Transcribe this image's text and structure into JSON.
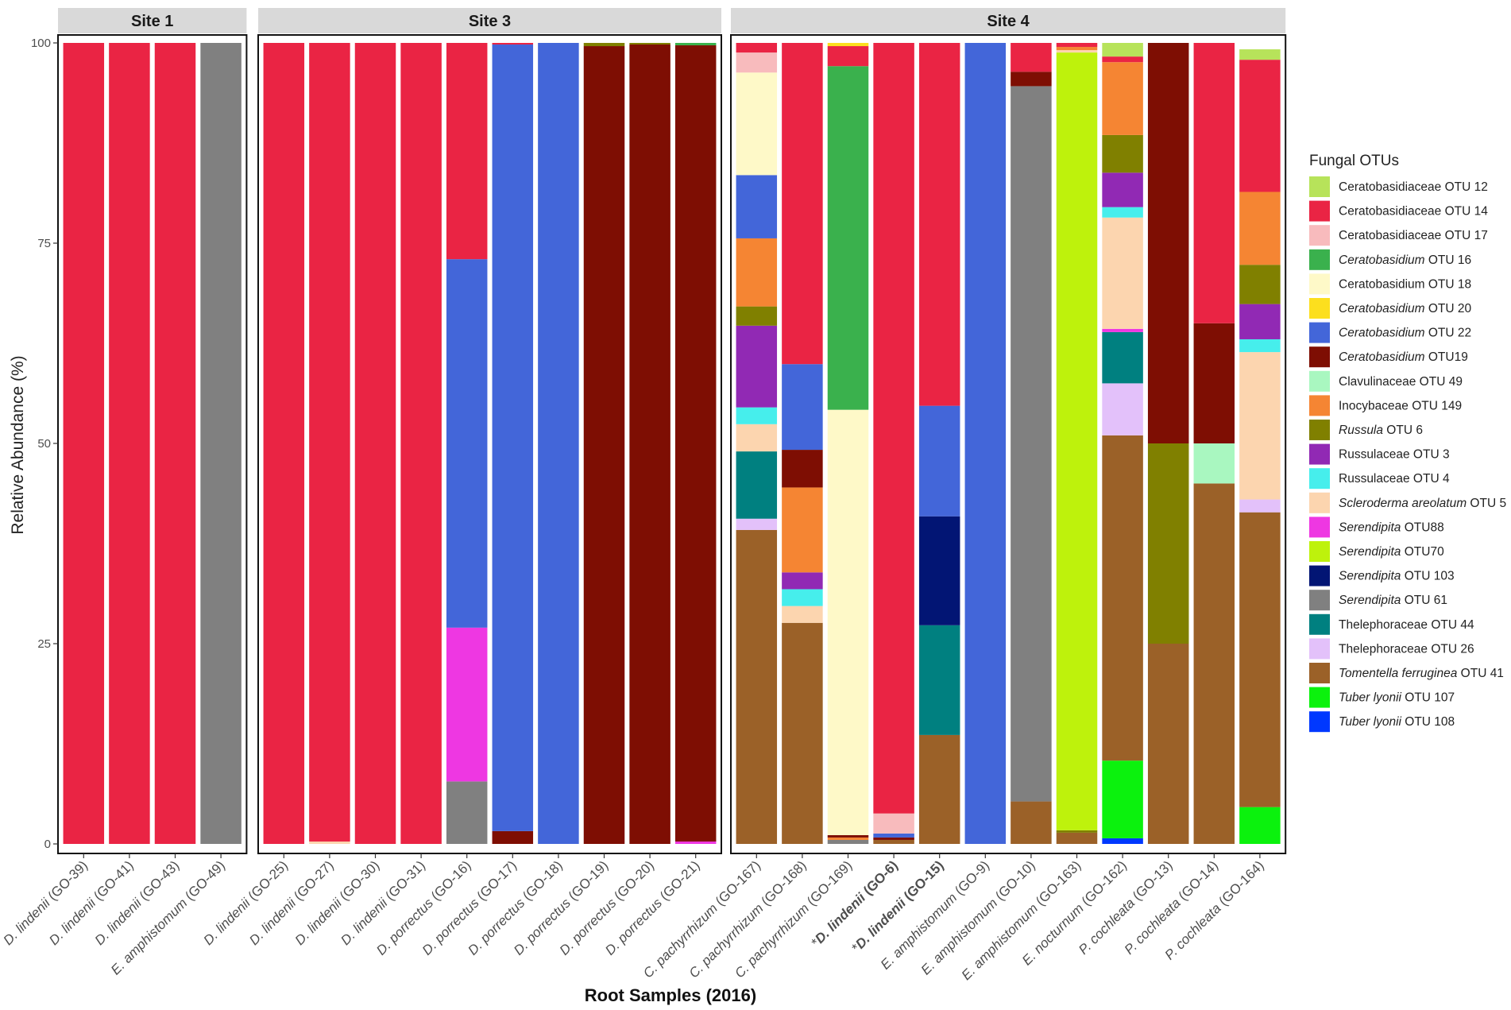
{
  "chart_data": {
    "type": "bar",
    "stacked": true,
    "faceted_by": "site",
    "ylabel": "Relative Abundance (%)",
    "xlabel": "Root Samples (2016)",
    "ylim": [
      0,
      100
    ],
    "yticks": [
      0,
      25,
      50,
      75,
      100
    ],
    "legend_title": "Fungal OTUs",
    "legend_position": "right",
    "otus": [
      {
        "id": "o12",
        "prefix": "Ceratobasidiaceae",
        "italic": false,
        "suffix": " OTU 12",
        "color": "#B7E35A"
      },
      {
        "id": "o14",
        "prefix": "Ceratobasidiaceae",
        "italic": false,
        "suffix": " OTU 14",
        "color": "#EA2444"
      },
      {
        "id": "o17",
        "prefix": "Ceratobasidiaceae",
        "italic": false,
        "suffix": " OTU 17",
        "color": "#F8BBBD"
      },
      {
        "id": "o16",
        "prefix": "Ceratobasidium",
        "italic": true,
        "suffix": " OTU 16",
        "color": "#3AB14D"
      },
      {
        "id": "o18",
        "prefix": "Ceratobasidium",
        "italic": false,
        "suffix": " OTU 18",
        "color": "#FEF9C8"
      },
      {
        "id": "o20",
        "prefix": "Ceratobasidium",
        "italic": true,
        "suffix": " OTU 20",
        "color": "#FCDF1E"
      },
      {
        "id": "o22",
        "prefix": "Ceratobasidium",
        "italic": true,
        "suffix": " OTU 22",
        "color": "#4366D9"
      },
      {
        "id": "o19",
        "prefix": "Ceratobasidium",
        "italic": true,
        "suffix": " OTU19",
        "color": "#7E0E03"
      },
      {
        "id": "o49",
        "prefix": "Clavulinaceae",
        "italic": false,
        "suffix": " OTU 49",
        "color": "#A9F7C0"
      },
      {
        "id": "o149",
        "prefix": "Inocybaceae",
        "italic": false,
        "suffix": " OTU 149",
        "color": "#F58533"
      },
      {
        "id": "o6",
        "prefix": "Russula",
        "italic": true,
        "suffix": " OTU 6",
        "color": "#808000"
      },
      {
        "id": "o3",
        "prefix": "Russulaceae",
        "italic": false,
        "suffix": " OTU 3",
        "color": "#9129B4"
      },
      {
        "id": "o4",
        "prefix": "Russulaceae",
        "italic": false,
        "suffix": " OTU 4",
        "color": "#46EEEC"
      },
      {
        "id": "o5",
        "prefix": "Scleroderma areolatum",
        "italic": true,
        "suffix": " OTU 5",
        "color": "#FCD5AF"
      },
      {
        "id": "o88",
        "prefix": "Serendipita",
        "italic": true,
        "suffix": " OTU88",
        "color": "#EE37E2"
      },
      {
        "id": "o70",
        "prefix": "Serendipita",
        "italic": true,
        "suffix": " OTU70",
        "color": "#BEF20C"
      },
      {
        "id": "o103",
        "prefix": "Serendipita",
        "italic": true,
        "suffix": " OTU 103",
        "color": "#021574"
      },
      {
        "id": "o61",
        "prefix": "Serendipita",
        "italic": true,
        "suffix": " OTU 61",
        "color": "#808080"
      },
      {
        "id": "o44",
        "prefix": "Thelephoraceae",
        "italic": false,
        "suffix": " OTU 44",
        "color": "#008080"
      },
      {
        "id": "o26",
        "prefix": "Thelephoraceae",
        "italic": false,
        "suffix": " OTU 26",
        "color": "#E3C1FA"
      },
      {
        "id": "o41",
        "prefix": "Tomentella ferruginea",
        "italic": true,
        "suffix": " OTU 41",
        "color": "#9B6128"
      },
      {
        "id": "o107",
        "prefix": "Tuber lyonii",
        "italic": true,
        "suffix": " OTU 107",
        "color": "#0BF20D"
      },
      {
        "id": "o108",
        "prefix": "Tuber lyonii",
        "italic": true,
        "suffix": " OTU 108",
        "color": "#0038FF"
      }
    ],
    "facets": [
      {
        "name": "Site 1",
        "samples": [
          {
            "label_species": "D. lindenii",
            "label_code": " (GO-39)",
            "asterisk": false,
            "bold": false,
            "stack": [
              {
                "otu": "o14",
                "value": 100
              }
            ]
          },
          {
            "label_species": "D. lindenii",
            "label_code": " (GO-41)",
            "asterisk": false,
            "bold": false,
            "stack": [
              {
                "otu": "o14",
                "value": 100
              }
            ]
          },
          {
            "label_species": "D. lindenii",
            "label_code": " (GO-43)",
            "asterisk": false,
            "bold": false,
            "stack": [
              {
                "otu": "o14",
                "value": 100
              }
            ]
          },
          {
            "label_species": "E. amphistomum",
            "label_code": " (GO-49)",
            "asterisk": false,
            "bold": false,
            "stack": [
              {
                "otu": "o61",
                "value": 100
              }
            ]
          }
        ]
      },
      {
        "name": "Site 3",
        "samples": [
          {
            "label_species": "D. lindenii",
            "label_code": " (GO-25)",
            "asterisk": false,
            "bold": false,
            "stack": [
              {
                "otu": "o14",
                "value": 100
              }
            ]
          },
          {
            "label_species": "D. lindenii",
            "label_code": " (GO-27)",
            "asterisk": false,
            "bold": false,
            "stack": [
              {
                "otu": "o5",
                "value": 0.3
              },
              {
                "otu": "o14",
                "value": 99.7
              }
            ]
          },
          {
            "label_species": "D. lindenii",
            "label_code": " (GO-30)",
            "asterisk": false,
            "bold": false,
            "stack": [
              {
                "otu": "o14",
                "value": 100
              }
            ]
          },
          {
            "label_species": "D. lindenii",
            "label_code": " (GO-31)",
            "asterisk": false,
            "bold": false,
            "stack": [
              {
                "otu": "o14",
                "value": 100
              }
            ]
          },
          {
            "label_species": "D. porrectus",
            "label_code": " (GO-16)",
            "asterisk": false,
            "bold": false,
            "stack": [
              {
                "otu": "o61",
                "value": 7.8
              },
              {
                "otu": "o88",
                "value": 19.2
              },
              {
                "otu": "o22",
                "value": 46
              },
              {
                "otu": "o14",
                "value": 27
              }
            ]
          },
          {
            "label_species": "D. porrectus",
            "label_code": " (GO-17)",
            "asterisk": false,
            "bold": false,
            "stack": [
              {
                "otu": "o19",
                "value": 1.6
              },
              {
                "otu": "o22",
                "value": 98.2
              },
              {
                "otu": "o14",
                "value": 0.2
              }
            ]
          },
          {
            "label_species": "D. porrectus",
            "label_code": " (GO-18)",
            "asterisk": false,
            "bold": false,
            "stack": [
              {
                "otu": "o22",
                "value": 100
              }
            ]
          },
          {
            "label_species": "D. porrectus",
            "label_code": " (GO-19)",
            "asterisk": false,
            "bold": false,
            "stack": [
              {
                "otu": "o19",
                "value": 99.6
              },
              {
                "otu": "o6",
                "value": 0.4
              }
            ]
          },
          {
            "label_species": "D. porrectus",
            "label_code": " (GO-20)",
            "asterisk": false,
            "bold": false,
            "stack": [
              {
                "otu": "o19",
                "value": 99.8
              },
              {
                "otu": "o6",
                "value": 0.2
              }
            ]
          },
          {
            "label_species": "D. porrectus",
            "label_code": " (GO-21)",
            "asterisk": false,
            "bold": false,
            "stack": [
              {
                "otu": "o88",
                "value": 0.3
              },
              {
                "otu": "o19",
                "value": 99.4
              },
              {
                "otu": "o16",
                "value": 0.3
              }
            ]
          }
        ]
      },
      {
        "name": "Site 4",
        "samples": [
          {
            "label_species": "C. pachyrrhizum",
            "label_code": " (GO-167)",
            "asterisk": false,
            "bold": false,
            "stack": [
              {
                "otu": "o41",
                "value": 39.2
              },
              {
                "otu": "o26",
                "value": 1.4
              },
              {
                "otu": "o44",
                "value": 8.4
              },
              {
                "otu": "o5",
                "value": 3.4
              },
              {
                "otu": "o4",
                "value": 2.1
              },
              {
                "otu": "o3",
                "value": 10.2
              },
              {
                "otu": "o6",
                "value": 2.4
              },
              {
                "otu": "o149",
                "value": 8.5
              },
              {
                "otu": "o22",
                "value": 7.9
              },
              {
                "otu": "o18",
                "value": 12.8
              },
              {
                "otu": "o17",
                "value": 2.5
              },
              {
                "otu": "o14",
                "value": 1.2
              }
            ]
          },
          {
            "label_species": "C. pachyrrhizum",
            "label_code": " (GO-168)",
            "asterisk": false,
            "bold": false,
            "stack": [
              {
                "otu": "o41",
                "value": 27.6
              },
              {
                "otu": "o5",
                "value": 2.1
              },
              {
                "otu": "o4",
                "value": 2.1
              },
              {
                "otu": "o3",
                "value": 2.1
              },
              {
                "otu": "o149",
                "value": 10.6
              },
              {
                "otu": "o19",
                "value": 4.7
              },
              {
                "otu": "o22",
                "value": 10.7
              },
              {
                "otu": "o14",
                "value": 40.1
              }
            ]
          },
          {
            "label_species": "C. pachyrrhizum",
            "label_code": " (GO-169)",
            "asterisk": false,
            "bold": false,
            "stack": [
              {
                "otu": "o61",
                "value": 0.5
              },
              {
                "otu": "o149",
                "value": 0.3
              },
              {
                "otu": "o19",
                "value": 0.3
              },
              {
                "otu": "o18",
                "value": 53.1
              },
              {
                "otu": "o16",
                "value": 42.9
              },
              {
                "otu": "o14",
                "value": 2.5
              },
              {
                "otu": "o20",
                "value": 0.4
              }
            ]
          },
          {
            "label_species": "D. lindenii",
            "label_code": " (GO-6)",
            "asterisk": true,
            "bold": true,
            "stack": [
              {
                "otu": "o41",
                "value": 0.5
              },
              {
                "otu": "o19",
                "value": 0.3
              },
              {
                "otu": "o22",
                "value": 0.5
              },
              {
                "otu": "o17",
                "value": 2.5
              },
              {
                "otu": "o14",
                "value": 96.2
              }
            ]
          },
          {
            "label_species": "D. lindenii",
            "label_code": " (GO-15)",
            "asterisk": true,
            "bold": true,
            "stack": [
              {
                "otu": "o41",
                "value": 13.6
              },
              {
                "otu": "o44",
                "value": 13.7
              },
              {
                "otu": "o103",
                "value": 13.6
              },
              {
                "otu": "o22",
                "value": 13.8
              },
              {
                "otu": "o14",
                "value": 45.3
              }
            ]
          },
          {
            "label_species": "E. amphistomum",
            "label_code": " (GO-9)",
            "asterisk": false,
            "bold": false,
            "stack": [
              {
                "otu": "o22",
                "value": 100
              }
            ]
          },
          {
            "label_species": "E. amphistomum",
            "label_code": " (GO-10)",
            "asterisk": false,
            "bold": false,
            "stack": [
              {
                "otu": "o41",
                "value": 5.3
              },
              {
                "otu": "o61",
                "value": 89.3
              },
              {
                "otu": "o19",
                "value": 1.8
              },
              {
                "otu": "o14",
                "value": 3.6
              }
            ]
          },
          {
            "label_species": "E. amphistomum",
            "label_code": " (GO-163)",
            "asterisk": false,
            "bold": false,
            "stack": [
              {
                "otu": "o41",
                "value": 1.4
              },
              {
                "otu": "o6",
                "value": 0.3
              },
              {
                "otu": "o70",
                "value": 97.1
              },
              {
                "otu": "o5",
                "value": 0.3
              },
              {
                "otu": "o149",
                "value": 0.4
              },
              {
                "otu": "o14",
                "value": 0.5
              }
            ]
          },
          {
            "label_species": "E. nocturnum",
            "label_code": " (GO-162)",
            "asterisk": false,
            "bold": false,
            "stack": [
              {
                "otu": "o108",
                "value": 0.7
              },
              {
                "otu": "o107",
                "value": 9.7
              },
              {
                "otu": "o41",
                "value": 40.6
              },
              {
                "otu": "o26",
                "value": 6.5
              },
              {
                "otu": "o44",
                "value": 6.4
              },
              {
                "otu": "o88",
                "value": 0.4
              },
              {
                "otu": "o5",
                "value": 13.9
              },
              {
                "otu": "o4",
                "value": 1.3
              },
              {
                "otu": "o3",
                "value": 4.3
              },
              {
                "otu": "o6",
                "value": 4.7
              },
              {
                "otu": "o149",
                "value": 9.1
              },
              {
                "otu": "o14",
                "value": 0.7
              },
              {
                "otu": "o12",
                "value": 1.7
              }
            ]
          },
          {
            "label_species": "P. cochleata",
            "label_code": " (GO-13)",
            "asterisk": false,
            "bold": false,
            "stack": [
              {
                "otu": "o41",
                "value": 25
              },
              {
                "otu": "o6",
                "value": 25
              },
              {
                "otu": "o19",
                "value": 50
              }
            ]
          },
          {
            "label_species": "P. cochleata",
            "label_code": " (GO-14)",
            "asterisk": false,
            "bold": false,
            "stack": [
              {
                "otu": "o41",
                "value": 45
              },
              {
                "otu": "o49",
                "value": 5
              },
              {
                "otu": "o19",
                "value": 15
              },
              {
                "otu": "o14",
                "value": 35
              }
            ]
          },
          {
            "label_species": "P. cochleata",
            "label_code": " (GO-164)",
            "asterisk": false,
            "bold": false,
            "stack": [
              {
                "otu": "o107",
                "value": 4.6
              },
              {
                "otu": "o41",
                "value": 36.8
              },
              {
                "otu": "o26",
                "value": 1.6
              },
              {
                "otu": "o5",
                "value": 18.4
              },
              {
                "otu": "o4",
                "value": 1.6
              },
              {
                "otu": "o3",
                "value": 4.4
              },
              {
                "otu": "o6",
                "value": 4.9
              },
              {
                "otu": "o149",
                "value": 9.1
              },
              {
                "otu": "o14",
                "value": 16.5
              },
              {
                "otu": "o12",
                "value": 1.3
              }
            ]
          }
        ]
      }
    ]
  }
}
